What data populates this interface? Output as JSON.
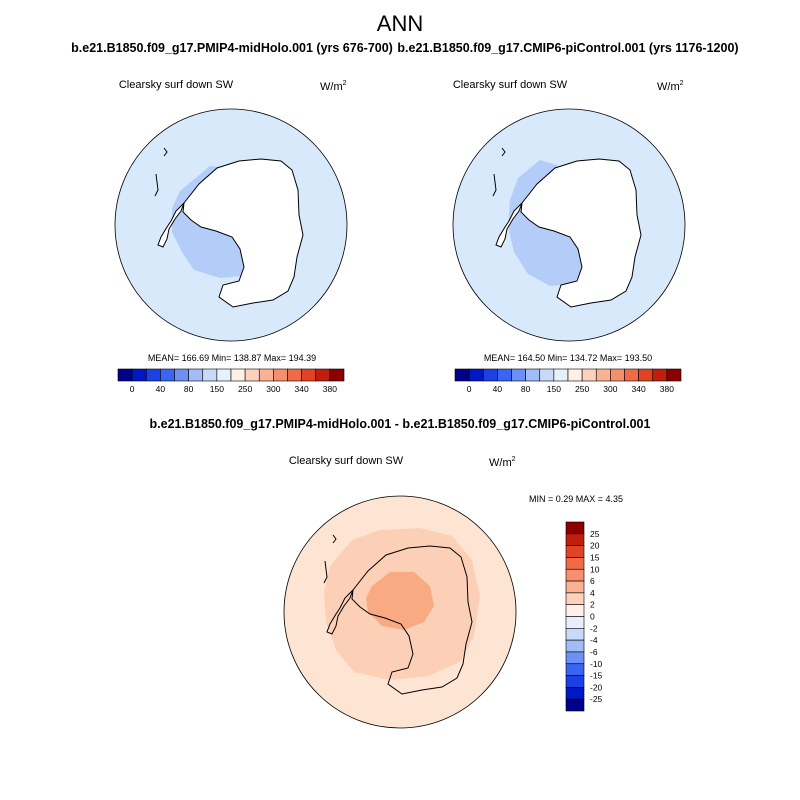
{
  "figure": {
    "title": "ANN",
    "panels": [
      {
        "case": "b.e21.B1850.f09_g17.PMIP4-midHolo.001 (yrs 676-700)",
        "variable": "Clearsky surf down SW",
        "units_base": "W/m",
        "units_exp": "2",
        "stats": "MEAN= 166.69  Min= 138.87  Max= 194.39"
      },
      {
        "case": "b.e21.B1850.f09_g17.CMIP6-piControl.001 (yrs 1176-1200)",
        "variable": "Clearsky surf down SW",
        "units_base": "W/m",
        "units_exp": "2",
        "stats": "MEAN= 164.50  Min= 134.72  Max= 193.50"
      }
    ],
    "diff": {
      "case": "b.e21.B1850.f09_g17.PMIP4-midHolo.001 - b.e21.B1850.f09_g17.CMIP6-piControl.001",
      "variable": "Clearsky surf down SW",
      "units_base": "W/m",
      "units_exp": "2",
      "stats": "MIN =   0.29 MAX =   4.35"
    },
    "colorbar_levels": [
      "0",
      "40",
      "80",
      "150",
      "250",
      "300",
      "340",
      "380"
    ],
    "colorbar_colors": [
      "#00008b",
      "#0018c4",
      "#1c40e4",
      "#3a64f2",
      "#6e90f4",
      "#a2bcf6",
      "#c8daf7",
      "#e6f0fb",
      "#fff0e6",
      "#fcd2bc",
      "#f9b294",
      "#f68f6e",
      "#f06a48",
      "#e04424",
      "#c01e0e",
      "#8c0000"
    ],
    "diff_levels": [
      "25",
      "20",
      "15",
      "10",
      "6",
      "4",
      "2",
      "0",
      "-2",
      "-4",
      "-6",
      "-10",
      "-15",
      "-20",
      "-25"
    ],
    "diff_colors": [
      "#8c0000",
      "#c01e0e",
      "#e04424",
      "#f06a48",
      "#f68f6e",
      "#f9b294",
      "#fcd2bc",
      "#fff0e6",
      "#e6f0fb",
      "#c8daf7",
      "#a2bcf6",
      "#6e90f4",
      "#3a64f2",
      "#1c40e4",
      "#0018c4",
      "#00008b"
    ],
    "map_colors": {
      "ocean_a": "#d8e9fb",
      "ocean_b": "#d8e9fb",
      "region_a": "#b4ccf8",
      "region_b": "#b4ccf8",
      "diff_base": "#fee4d3",
      "diff_mid": "#fcd0b6",
      "diff_high": "#f9aa82"
    }
  }
}
